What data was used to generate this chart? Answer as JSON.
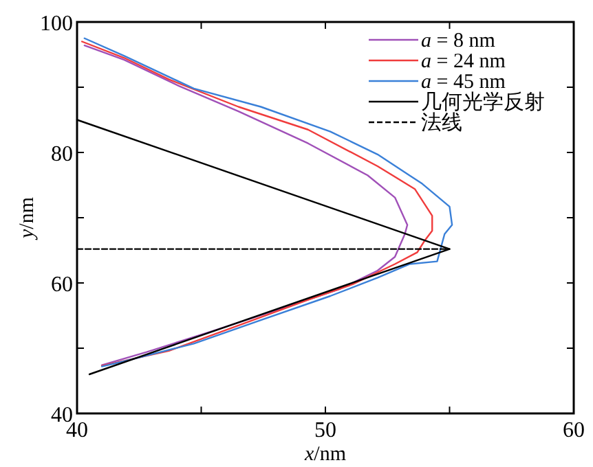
{
  "chart_data": {
    "type": "line",
    "xlabel": "*x*/nm",
    "ylabel": "*y*/nm",
    "xlim": [
      40,
      60
    ],
    "ylim": [
      40,
      100
    ],
    "xticks": [
      40,
      {
        "value": 45,
        "label": null
      },
      50,
      {
        "value": 55,
        "label": null
      },
      60
    ],
    "yticks": [
      40,
      {
        "value": 50,
        "label": null
      },
      60,
      {
        "value": 70,
        "label": null
      },
      80,
      {
        "value": 90,
        "label": null
      },
      100
    ],
    "grid": false,
    "legend": "top right",
    "marker": "none",
    "series": [
      {
        "name": "*a* = 8 nm",
        "color": "#a050b8",
        "x": [
          40.3,
          41.9,
          44.1,
          46.5,
          49.3,
          51.7,
          52.8,
          53.3,
          53.2,
          52.8,
          52.1,
          50.6,
          48.4,
          45.6,
          42.8,
          41.0
        ],
        "values": [
          96.4,
          94.2,
          90.2,
          86.3,
          81.4,
          76.5,
          73.1,
          68.9,
          67.5,
          64.0,
          61.9,
          59.1,
          56.3,
          52.8,
          49.4,
          47.4
        ]
      },
      {
        "name": "*a* = 24 nm",
        "color": "#f03c3c",
        "x": [
          40.2,
          41.9,
          43.7,
          46.5,
          49.3,
          52.1,
          53.6,
          54.3,
          54.3,
          54.0,
          53.7,
          52.8,
          51.1,
          49.3,
          46.5,
          43.7,
          41.0
        ],
        "values": [
          97.0,
          94.5,
          91.2,
          87.0,
          83.5,
          77.9,
          74.4,
          70.3,
          68.0,
          66.5,
          64.7,
          62.9,
          59.8,
          57.4,
          53.5,
          49.6,
          47.3
        ]
      },
      {
        "name": "*a* = 45 nm",
        "color": "#3a80d8",
        "x": [
          40.3,
          41.9,
          44.7,
          47.4,
          50.2,
          52.1,
          53.9,
          55.0,
          55.1,
          54.8,
          54.5,
          53.4,
          52.1,
          50.2,
          47.4,
          44.7,
          41.9,
          41.0
        ],
        "values": [
          97.5,
          94.8,
          89.8,
          87.0,
          83.2,
          79.7,
          75.2,
          71.7,
          68.9,
          67.5,
          63.3,
          62.9,
          60.8,
          58.0,
          54.3,
          50.7,
          48.0,
          47.2
        ]
      },
      {
        "name": "几何光学反射",
        "color": "#000000",
        "x": [
          40,
          55,
          40.5
        ],
        "values": [
          85,
          65.2,
          46
        ]
      },
      {
        "name": "法线",
        "color": "#000000",
        "line_style": "dashed",
        "x": [
          40,
          55
        ],
        "values": [
          65.2,
          65.2
        ]
      }
    ]
  }
}
